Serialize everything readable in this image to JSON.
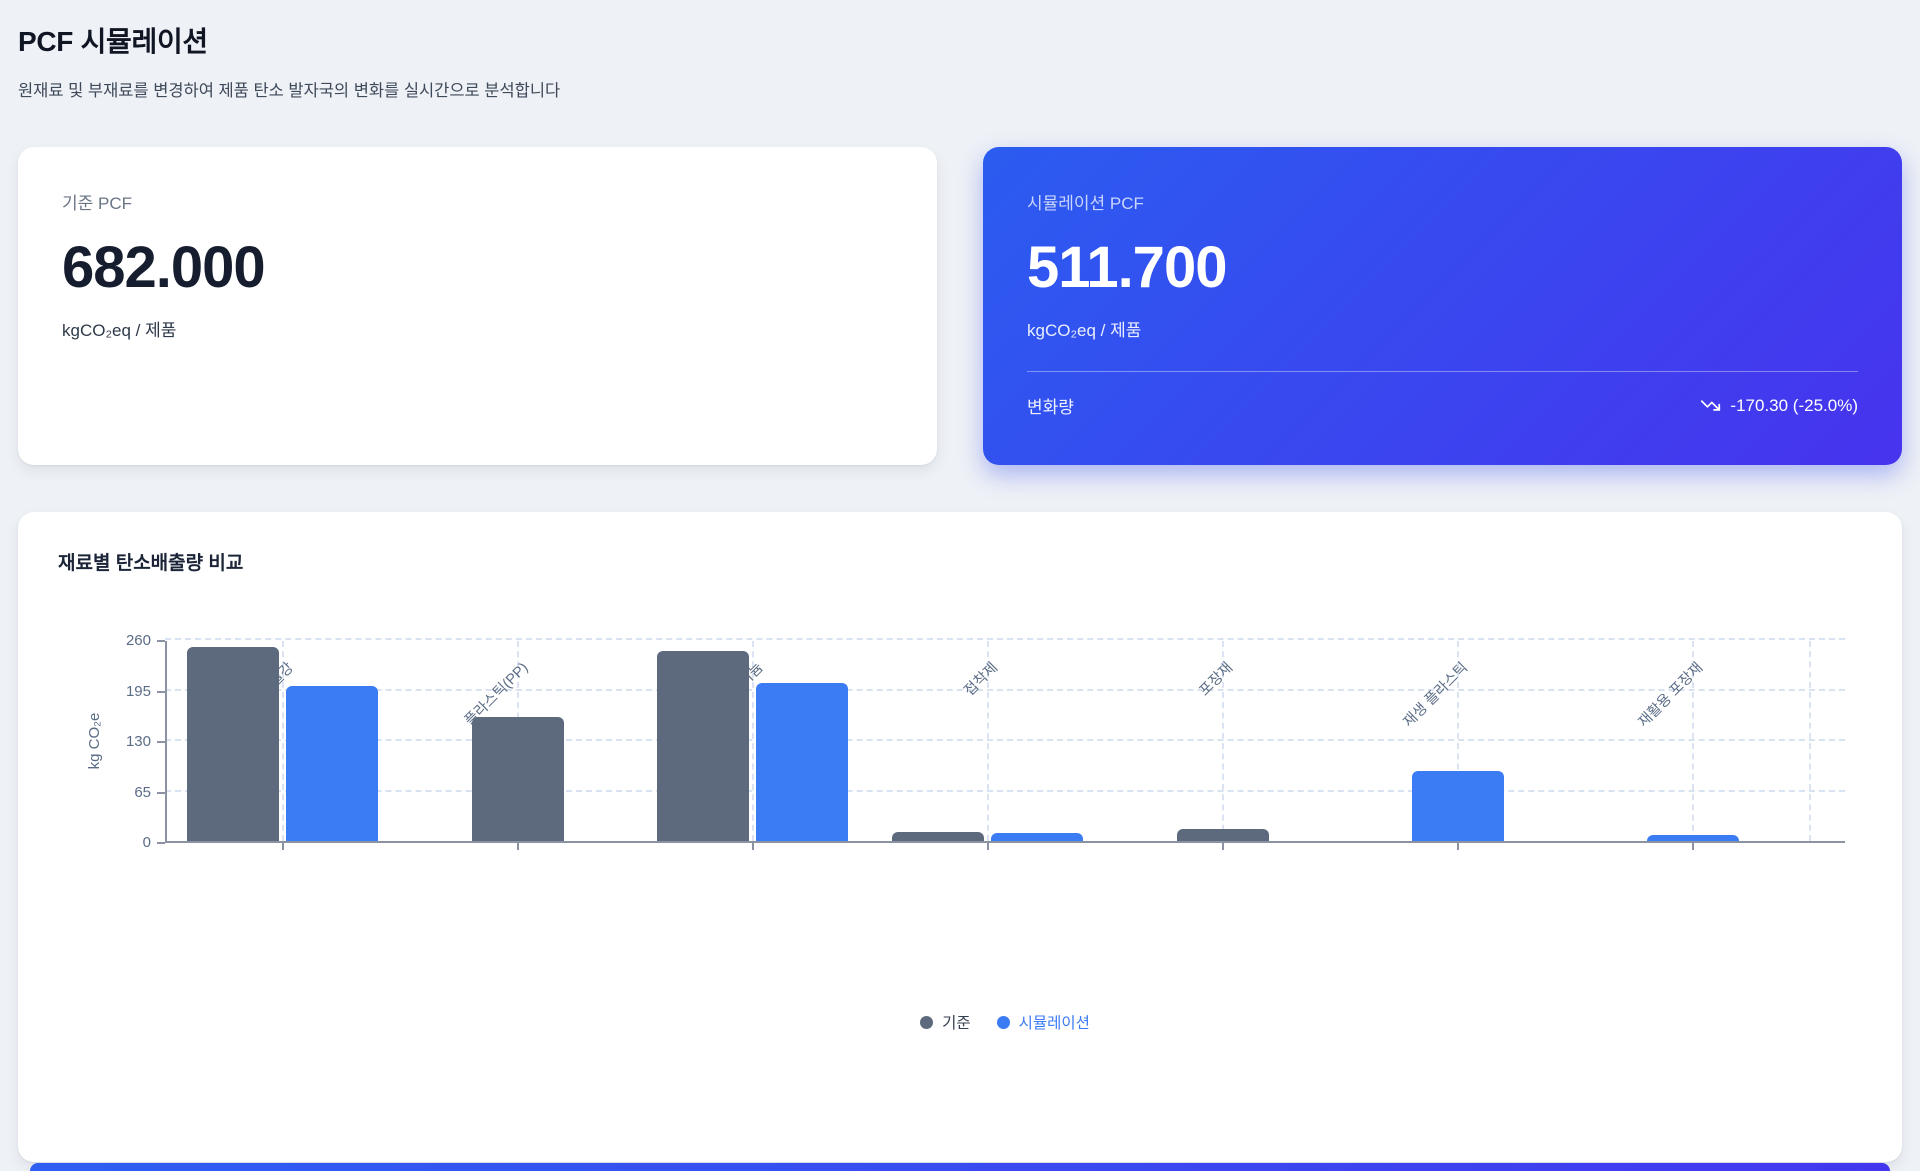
{
  "page": {
    "title": "PCF 시뮬레이션",
    "subtitle": "원재료 및 부재료를 변경하여 제품 탄소 발자국의 변화를 실시간으로 분석합니다"
  },
  "baseline_card": {
    "label": "기준 PCF",
    "value": "682.000",
    "unit": "kgCO₂eq / 제품"
  },
  "simulation_card": {
    "label": "시뮬레이션 PCF",
    "value": "511.700",
    "unit": "kgCO₂eq / 제품",
    "change_label": "변화량",
    "change_value": "-170.30 (-25.0%)",
    "trend_icon": "trending-down"
  },
  "chart_card": {
    "title": "재료별 탄소배출량 비교"
  },
  "chart_data": {
    "type": "bar",
    "title": "재료별 탄소배출량 비교",
    "categories": [
      "철강",
      "플라스틱(PP)",
      "알루미늄",
      "접착제",
      "포장재",
      "재생 플라스틱",
      "재활용 포장재"
    ],
    "series": [
      {
        "name": "기준",
        "color": "#5d6a7e",
        "label_color": "#333e4f",
        "values": [
          250,
          160,
          245,
          12,
          15,
          0,
          0
        ]
      },
      {
        "name": "시뮬레이션",
        "color": "#3b7cf5",
        "label_color": "#3b7cf5",
        "values": [
          200,
          0,
          203.7,
          10,
          0,
          90,
          8
        ]
      }
    ],
    "xlabel": "",
    "ylabel": "kg CO₂e",
    "ylim": [
      0,
      260
    ],
    "yticks": [
      0,
      65,
      130,
      195,
      260
    ],
    "grid": true,
    "legend_position": "bottom"
  },
  "colors": {
    "accent_blue": "#3b7cf5",
    "baseline_gray": "#5d6a7e",
    "sim_card_gradient_start": "#2b5cf0",
    "sim_card_gradient_end": "#4733ee",
    "page_background": "#eef1f6"
  }
}
